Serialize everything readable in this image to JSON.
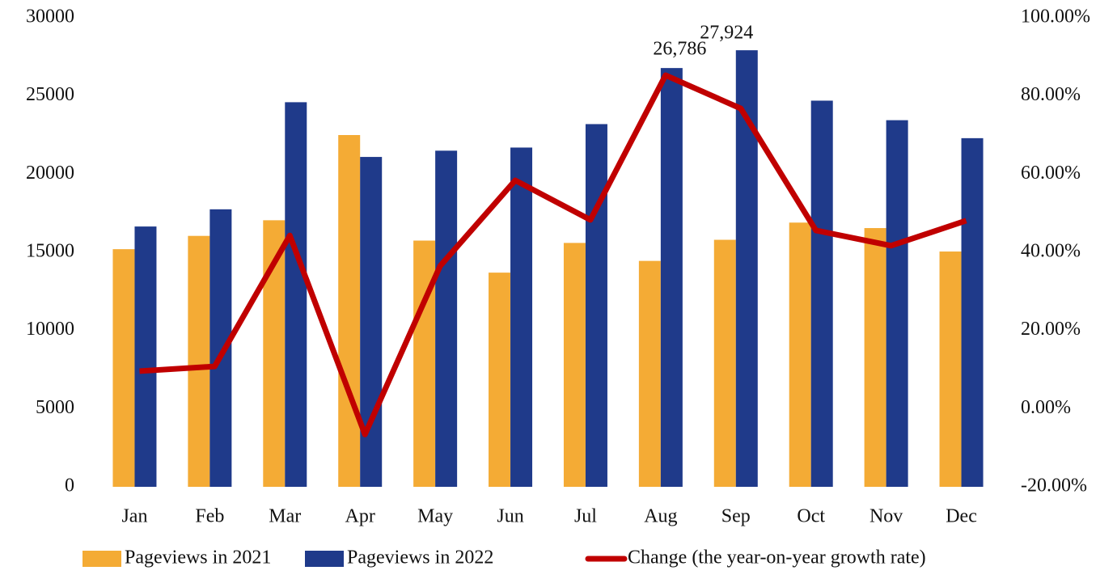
{
  "chart_data": {
    "type": "bar-line",
    "categories": [
      "Jan",
      "Feb",
      "Mar",
      "Apr",
      "May",
      "Jun",
      "Jul",
      "Aug",
      "Sep",
      "Oct",
      "Nov",
      "Dec"
    ],
    "series": [
      {
        "name": "Pageviews in 2021",
        "color": "#f4ab35",
        "type": "bar",
        "values": [
          15200,
          16050,
          17050,
          22500,
          15750,
          13700,
          15600,
          14450,
          15800,
          16900,
          16550,
          15050
        ]
      },
      {
        "name": "Pageviews in 2022",
        "color": "#1f3a8a",
        "type": "bar",
        "values": [
          16650,
          17750,
          24600,
          21100,
          21500,
          21700,
          23200,
          26786,
          27924,
          24700,
          23450,
          22300
        ],
        "value_labels": [
          null,
          null,
          null,
          null,
          null,
          null,
          null,
          "26,786",
          "27,924",
          null,
          null,
          null
        ]
      },
      {
        "name": "Change (the year-on-year growth rate)",
        "color": "#c00000",
        "type": "line",
        "axis": "y2",
        "values": [
          9.6,
          10.8,
          44.3,
          -6.6,
          36.5,
          58.4,
          48.3,
          85.3,
          76.8,
          45.6,
          41.7,
          48.1
        ]
      }
    ],
    "ylim": [
      0,
      30000
    ],
    "yticks": [
      0,
      5000,
      10000,
      15000,
      20000,
      25000,
      30000
    ],
    "y2lim": [
      -20,
      100
    ],
    "y2ticks": [
      {
        "value": -20,
        "label": "-20.00%"
      },
      {
        "value": 0,
        "label": "0.00%"
      },
      {
        "value": 20,
        "label": "20.00%"
      },
      {
        "value": 40,
        "label": "40.00%"
      },
      {
        "value": 60,
        "label": "60.00%"
      },
      {
        "value": 80,
        "label": "80.00%"
      },
      {
        "value": 100,
        "label": "100.00%"
      }
    ],
    "legend": "bottom"
  }
}
